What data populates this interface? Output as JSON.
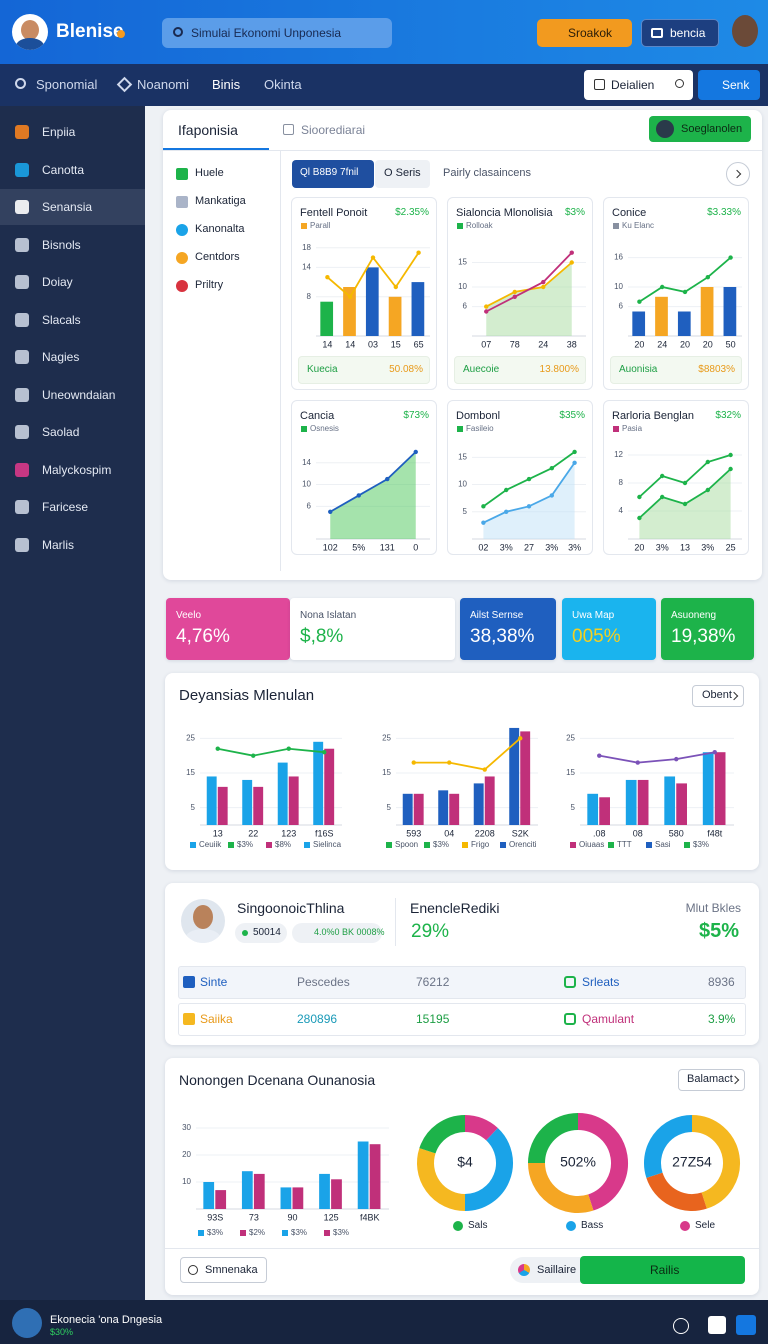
{
  "header": {
    "logo": "Blenise",
    "search": "Simulai Ekonomi Unponesia",
    "button_primary": "Sroakok",
    "button_secondary": "bencia"
  },
  "nav": {
    "items": [
      "Sponomial",
      "Noanomi",
      "Binis",
      "Okinta"
    ],
    "search": "Deialien",
    "button": "Senk"
  },
  "sidebar": {
    "items": [
      "Enpiia",
      "Canotta",
      "Senansia",
      "Bisnols",
      "Doiay",
      "Slacals",
      "Nagies",
      "Uneowndaian",
      "Saolad",
      "Malyckospim",
      "Faricese",
      "Marlis"
    ],
    "active": 2
  },
  "overview": {
    "tabs": [
      "Ifaponisia",
      "Sioorediarai"
    ],
    "button": "Soeglanolen",
    "filters": [
      "Huele",
      "Mankatiga",
      "Kanonalta",
      "Centdors",
      "Priltry"
    ],
    "toolbar": [
      "Ql B8B9 7fnil",
      "O Seris",
      "Pairly clasaincens"
    ],
    "cards": [
      {
        "title": "Fentell Ponoit",
        "value": "$2.35%",
        "legend": "Parall",
        "legend_color": "#f5a623",
        "ylim": [
          0,
          20
        ],
        "yticks": [
          8,
          14,
          18
        ],
        "x": [
          "14",
          "14",
          "03",
          "15",
          "65"
        ],
        "bars": [
          {
            "values": [
              7,
              10,
              14,
              8,
              11
            ],
            "colors": [
              "#1db34a",
              "#f5a623",
              "#1f5fbf",
              "#f5a623",
              "#1f5fbf"
            ]
          }
        ],
        "lines": [
          {
            "values": [
              12,
              8,
              16,
              10,
              17
            ],
            "color": "#f5b800"
          }
        ],
        "footer_label": "Kuecia",
        "footer_value": "50.08%"
      },
      {
        "title": "Sialoncia Mlonolisia",
        "value": "$3%",
        "legend": "Rolloak",
        "legend_color": "#1db34a",
        "ylim": [
          0,
          20
        ],
        "yticks": [
          6,
          10,
          15
        ],
        "x": [
          "07",
          "78",
          "24",
          "38"
        ],
        "lines": [
          {
            "values": [
              6,
              9,
              10,
              15
            ],
            "color": "#f5b800",
            "area": "#a8dca0"
          },
          {
            "values": [
              5,
              8,
              11,
              17
            ],
            "color": "#c0307a"
          }
        ],
        "footer_label": "Auecoie",
        "footer_value": "13.800%"
      },
      {
        "title": "Conice",
        "value": "$3.33%",
        "legend": "Ku Elanc",
        "legend_color": "#8890a0",
        "ylim": [
          0,
          20
        ],
        "yticks": [
          6,
          10,
          16
        ],
        "x": [
          "20",
          "24",
          "20",
          "20",
          "50"
        ],
        "bars": [
          {
            "values": [
              5,
              8,
              5,
              10,
              10
            ],
            "colors": [
              "#1f5fbf",
              "#f5a623",
              "#1f5fbf",
              "#f5a623",
              "#1f5fbf"
            ]
          }
        ],
        "lines": [
          {
            "values": [
              7,
              10,
              9,
              12,
              16
            ],
            "color": "#1db34a"
          }
        ],
        "footer_label": "Auonisia",
        "footer_value": "$8803%"
      },
      {
        "title": "Cancia",
        "value": "$73%",
        "legend": "Osnesis",
        "legend_color": "#1db34a",
        "ylim": [
          0,
          18
        ],
        "yticks": [
          6,
          10,
          14
        ],
        "x": [
          "102",
          "5%",
          "131",
          "0"
        ],
        "lines": [
          {
            "values": [
              5,
              8,
              11,
              16
            ],
            "color": "#1f5fbf",
            "area": "#4cc75a"
          }
        ]
      },
      {
        "title": "Dombonl",
        "value": "$35%",
        "legend": "Fasileio",
        "legend_color": "#1db34a",
        "ylim": [
          0,
          18
        ],
        "yticks": [
          5,
          10,
          15
        ],
        "x": [
          "02",
          "3%",
          "27",
          "3%",
          "3%"
        ],
        "lines": [
          {
            "values": [
              3,
              5,
              6,
              8,
              14
            ],
            "color": "#4aa8e8",
            "area": "#bfe2f7"
          },
          {
            "values": [
              6,
              9,
              11,
              13,
              16
            ],
            "color": "#1db34a"
          }
        ]
      },
      {
        "title": "Rarloria Benglan",
        "value": "$32%",
        "legend": "Pasia",
        "legend_color": "#c0307a",
        "ylim": [
          0,
          14
        ],
        "yticks": [
          4,
          8,
          12
        ],
        "x": [
          "20",
          "3%",
          "13",
          "3%",
          "25"
        ],
        "lines": [
          {
            "values": [
              3,
              6,
              5,
              7,
              10
            ],
            "color": "#1db34a",
            "area": "#a8dca0"
          },
          {
            "values": [
              6,
              9,
              8,
              11,
              12
            ],
            "color": "#1db34a"
          }
        ]
      }
    ]
  },
  "kpis": [
    {
      "label": "Veelo",
      "value": "4,76%"
    },
    {
      "label": "Nona Islatan",
      "value": "$,8%"
    },
    {
      "label": "Ailst Sernse",
      "value": "38,38%"
    },
    {
      "label": "Uwa Map",
      "value": "005%"
    },
    {
      "label": "Asuoneng",
      "value": "19,38%"
    }
  ],
  "trends": {
    "title": "Deyansias Mlenulan",
    "button": "Obent",
    "charts": [
      {
        "ylim": [
          0,
          30
        ],
        "yticks": [
          5,
          15,
          25
        ],
        "x": [
          "13",
          "22",
          "123",
          "f16S"
        ],
        "bars": [
          {
            "values": [
              14,
              13,
              18,
              24
            ],
            "color": "#1aa3e8"
          },
          {
            "values": [
              11,
              11,
              14,
              22
            ],
            "color": "#c0307a"
          }
        ],
        "lines": [
          {
            "values": [
              22,
              20,
              22,
              21
            ],
            "color": "#1db34a"
          }
        ],
        "legend": [
          {
            "name": "Ceuiik",
            "color": "#1aa3e8"
          },
          {
            "name": "$3%",
            "color": "#1db34a"
          },
          {
            "name": "$8%",
            "color": "#c0307a"
          },
          {
            "name": "Sielinca",
            "color": "#1aa3e8"
          }
        ]
      },
      {
        "ylim": [
          0,
          30
        ],
        "yticks": [
          5,
          15,
          25
        ],
        "x": [
          "593",
          "04",
          "2208",
          "S2K"
        ],
        "bars": [
          {
            "values": [
              9,
              10,
              12,
              28
            ],
            "color": "#1f5fbf"
          },
          {
            "values": [
              9,
              9,
              14,
              27
            ],
            "color": "#c0307a"
          }
        ],
        "lines": [
          {
            "values": [
              18,
              18,
              16,
              25
            ],
            "color": "#f5b800"
          }
        ],
        "legend": [
          {
            "name": "Spoon",
            "color": "#1db34a"
          },
          {
            "name": "$3%",
            "color": "#1db34a"
          },
          {
            "name": "Frigo",
            "color": "#f5b800"
          },
          {
            "name": "Orenciti",
            "color": "#1f5fbf"
          }
        ]
      },
      {
        "ylim": [
          0,
          30
        ],
        "yticks": [
          5,
          15,
          25
        ],
        "x": [
          ".08",
          "08",
          "580",
          "f48t"
        ],
        "bars": [
          {
            "values": [
              9,
              13,
              14,
              21
            ],
            "color": "#1aa3e8"
          },
          {
            "values": [
              8,
              13,
              12,
              21
            ],
            "color": "#c0307a"
          }
        ],
        "lines": [
          {
            "values": [
              20,
              18,
              19,
              21
            ],
            "color": "#7b52b8"
          }
        ],
        "legend": [
          {
            "name": "Oiuaas",
            "color": "#c0307a"
          },
          {
            "name": "TTT",
            "color": "#1db34a"
          },
          {
            "name": "Sasi",
            "color": "#1f5fbf"
          },
          {
            "name": "$3%",
            "color": "#1db34a"
          }
        ]
      }
    ]
  },
  "profile": {
    "name": "SingoonoicThlina",
    "pills": [
      "50014",
      "4.0%0 BK 0008%"
    ],
    "metric_label": "EnencleRediki",
    "metric_value": "29%",
    "side_label": "Mlut Bkles",
    "side_value": "$5%",
    "rows": [
      [
        "Sinte",
        "Pescedes",
        "76212",
        "Srleats",
        "8936"
      ],
      [
        "Saiika",
        "280896",
        "15195",
        "Qamulant",
        "3.9%"
      ]
    ]
  },
  "summary": {
    "title": "Nonongen Dcenana Ounanosia",
    "button": "Balamact",
    "bar_chart": {
      "ylim": [
        0,
        40
      ],
      "yticks": [
        10,
        20,
        30
      ],
      "x": [
        "93S",
        "73",
        "90",
        "125",
        "f4BK"
      ],
      "bars": [
        {
          "values": [
            10,
            14,
            8,
            13,
            25
          ],
          "color": "#1aa3e8"
        },
        {
          "values": [
            7,
            13,
            8,
            11,
            24
          ],
          "color": "#c0307a"
        }
      ],
      "legend": [
        {
          "name": "$3%",
          "color": "#1aa3e8"
        },
        {
          "name": "$2%",
          "color": "#c0307a"
        },
        {
          "name": "$3%",
          "color": "#1aa3e8"
        },
        {
          "name": "$3%",
          "color": "#c0307a"
        }
      ]
    },
    "donuts": [
      {
        "values": [
          12,
          38,
          30,
          20
        ],
        "colors": [
          "#d8398a",
          "#1aa3e8",
          "#f5b820",
          "#1db34a"
        ],
        "center": "$4",
        "legend": "Sals",
        "legend_color": "#1db34a"
      },
      {
        "values": [
          45,
          30,
          25
        ],
        "colors": [
          "#d8398a",
          "#f5a623",
          "#1db34a"
        ],
        "center": "502%",
        "legend": "Bass",
        "legend_color": "#1aa3e8"
      },
      {
        "values": [
          45,
          25,
          30
        ],
        "colors": [
          "#f5b820",
          "#e8641e",
          "#1aa3e8"
        ],
        "center": "27Z54",
        "legend": "Sele",
        "legend_color": "#d8398a"
      }
    ],
    "search": "Smnenaka",
    "pill": "Saillaire",
    "button_primary": "Railis"
  },
  "footer": {
    "title": "Ekonecia 'ona Dngesia",
    "subtitle": "$30%"
  }
}
